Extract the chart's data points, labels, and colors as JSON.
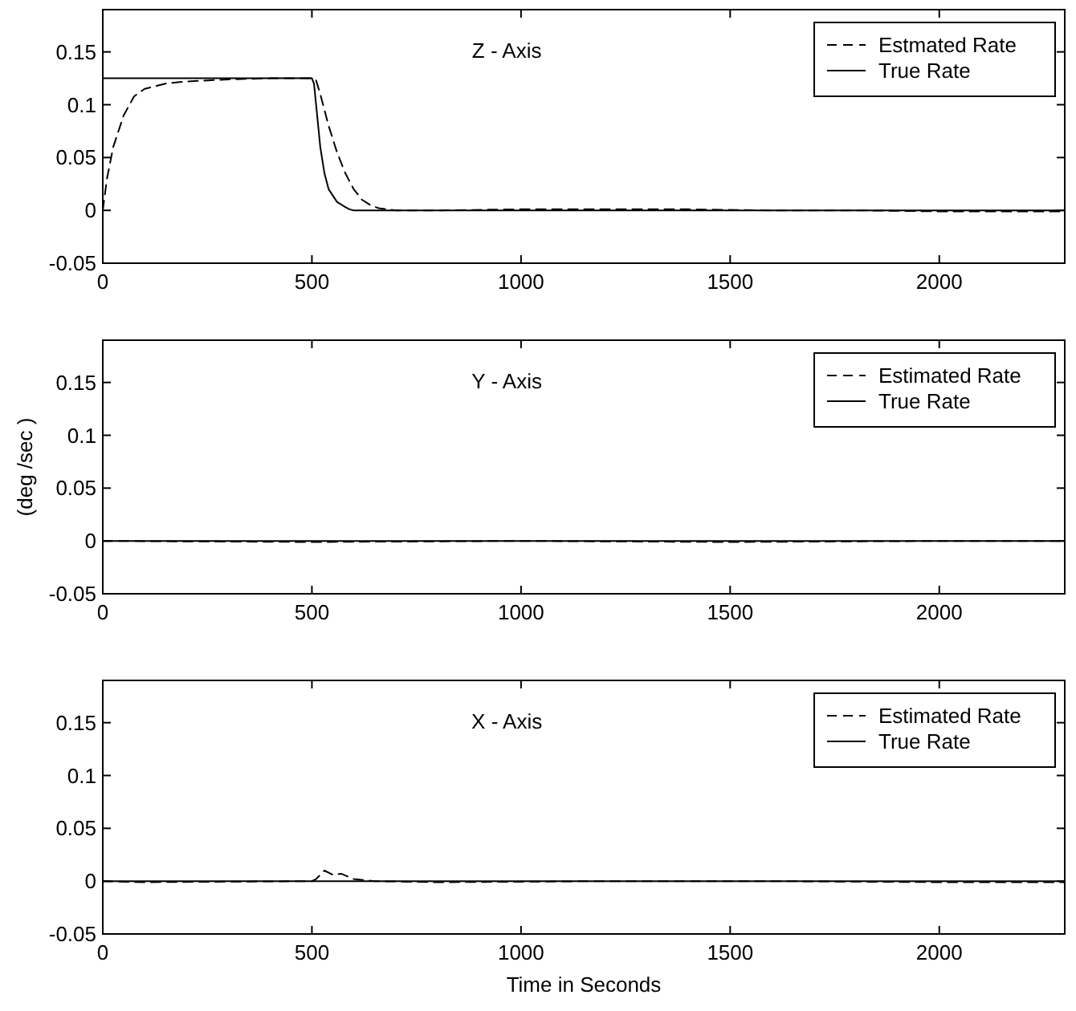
{
  "chart_data": [
    {
      "type": "line",
      "title": "Z - Axis",
      "xlim": [
        0,
        2300
      ],
      "xticks": [
        0,
        500,
        1000,
        1500,
        2000
      ],
      "ylim": [
        -0.05,
        0.19
      ],
      "yticks": [
        -0.05,
        0,
        0.05,
        0.1,
        0.15
      ],
      "grid": false,
      "legend": "top right",
      "series": [
        {
          "name": "Estmated Rate",
          "color": "#000000",
          "line_style": "dashed",
          "x": [
            0,
            10,
            25,
            50,
            75,
            100,
            150,
            200,
            300,
            400,
            500,
            510,
            520,
            540,
            560,
            580,
            600,
            620,
            640,
            660,
            700,
            800,
            1000,
            1200,
            1400,
            1600,
            1800,
            2000,
            2200,
            2300
          ],
          "values": [
            0,
            0.03,
            0.06,
            0.09,
            0.108,
            0.115,
            0.12,
            0.122,
            0.124,
            0.125,
            0.125,
            0.123,
            0.11,
            0.08,
            0.055,
            0.035,
            0.02,
            0.01,
            0.005,
            0.002,
            0,
            0,
            0.001,
            0.001,
            0.001,
            0,
            0,
            -0.001,
            -0.001,
            -0.001
          ]
        },
        {
          "name": "True Rate",
          "color": "#000000",
          "line_style": "solid",
          "x": [
            0,
            500,
            505,
            510,
            520,
            530,
            540,
            560,
            580,
            590,
            600,
            2300
          ],
          "values": [
            0.125,
            0.125,
            0.12,
            0.1,
            0.06,
            0.035,
            0.02,
            0.008,
            0.003,
            0.001,
            0,
            0
          ]
        }
      ]
    },
    {
      "type": "line",
      "title": "Y - Axis",
      "ylabel": "(deg /sec )",
      "xlim": [
        0,
        2300
      ],
      "xticks": [
        0,
        500,
        1000,
        1500,
        2000
      ],
      "ylim": [
        -0.05,
        0.19
      ],
      "yticks": [
        -0.05,
        0,
        0.05,
        0.1,
        0.15
      ],
      "grid": false,
      "legend": "top right",
      "series": [
        {
          "name": "Estimated Rate",
          "color": "#000000",
          "line_style": "dashed",
          "x": [
            0,
            500,
            1000,
            1500,
            2000,
            2300
          ],
          "values": [
            0,
            -0.001,
            0,
            -0.001,
            0,
            0
          ]
        },
        {
          "name": "True Rate",
          "color": "#000000",
          "line_style": "solid",
          "x": [
            0,
            2300
          ],
          "values": [
            0,
            0
          ]
        }
      ]
    },
    {
      "type": "line",
      "title": "X - Axis",
      "xlabel": "Time in Seconds",
      "xlim": [
        0,
        2300
      ],
      "xticks": [
        0,
        500,
        1000,
        1500,
        2000
      ],
      "ylim": [
        -0.05,
        0.19
      ],
      "yticks": [
        -0.05,
        0,
        0.05,
        0.1,
        0.15
      ],
      "grid": false,
      "legend": "top right",
      "series": [
        {
          "name": "Estimated Rate",
          "color": "#000000",
          "line_style": "dashed",
          "x": [
            0,
            100,
            500,
            510,
            530,
            550,
            570,
            600,
            650,
            800,
            1200,
            1600,
            2000,
            2300
          ],
          "values": [
            0,
            -0.001,
            0,
            0.002,
            0.01,
            0.006,
            0.007,
            0.002,
            0,
            -0.001,
            0,
            0,
            -0.001,
            -0.001
          ]
        },
        {
          "name": "True Rate",
          "color": "#000000",
          "line_style": "solid",
          "x": [
            0,
            2300
          ],
          "values": [
            0,
            0
          ]
        }
      ]
    }
  ]
}
